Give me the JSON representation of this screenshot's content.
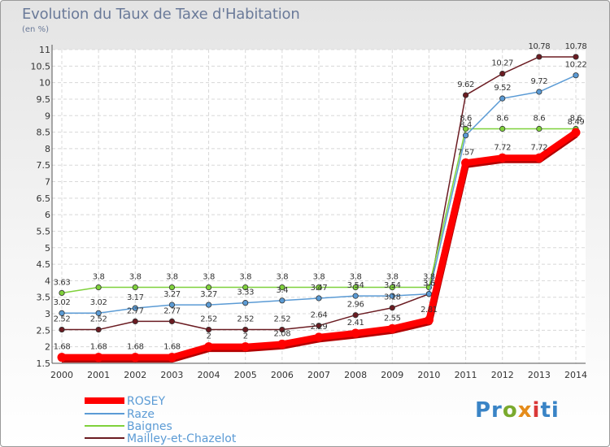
{
  "chart_data": {
    "type": "line",
    "title": "Evolution du Taux de Taxe d'Habitation",
    "subtitle": "(en %)",
    "x": [
      "2000",
      "2001",
      "2002",
      "2003",
      "2004",
      "2005",
      "2006",
      "2007",
      "2008",
      "2009",
      "2010",
      "2011",
      "2012",
      "2013",
      "2014"
    ],
    "ylim": [
      1.5,
      11
    ],
    "yticks": [
      "1.5",
      "2",
      "2.5",
      "3",
      "3.5",
      "4",
      "4.5",
      "5",
      "5.5",
      "6",
      "6.5",
      "7",
      "7.5",
      "8",
      "8.5",
      "9",
      "9.5",
      "10",
      "10.5",
      "11"
    ],
    "grid": true,
    "legend_position": "bottom-left",
    "series": [
      {
        "name": "ROSEY",
        "color": "#ff0000",
        "values": [
          1.68,
          1.68,
          1.68,
          1.68,
          2,
          2,
          2.08,
          2.29,
          2.41,
          2.55,
          2.81,
          7.57,
          7.72,
          7.72,
          8.49
        ],
        "labels": [
          "1.68",
          "1.68",
          "1.68",
          "1.68",
          "2",
          "2",
          "2.08",
          "2.29",
          "2.41",
          "2.55",
          "2.81",
          "7.57",
          "7.72",
          "7.72",
          "8.49"
        ]
      },
      {
        "name": "Raze",
        "color": "#5b9bd5",
        "values": [
          3.02,
          3.02,
          3.17,
          3.27,
          3.27,
          3.33,
          3.4,
          3.47,
          3.54,
          3.54,
          3.6,
          8.4,
          9.52,
          9.72,
          10.22
        ],
        "labels": [
          "3.02",
          "3.02",
          "3.17",
          "3.27",
          "3.27",
          "3.33",
          "3.4",
          "3.47",
          "3.54",
          "3.54",
          "3.6",
          "8.4",
          "9.52",
          "9.72",
          "10.22"
        ]
      },
      {
        "name": "Baignes",
        "color": "#7fd13b",
        "values": [
          3.63,
          3.8,
          3.8,
          3.8,
          3.8,
          3.8,
          3.8,
          3.8,
          3.8,
          3.8,
          3.8,
          8.6,
          8.6,
          8.6,
          8.6
        ],
        "labels": [
          "3.63",
          "3.8",
          "3.8",
          "3.8",
          "3.8",
          "3.8",
          "3.8",
          "3.8",
          "3.8",
          "3.8",
          "3.8",
          "8.6",
          "8.6",
          "8.6",
          "8.6"
        ]
      },
      {
        "name": "Mailley-et-Chazelot",
        "color": "#6b1c22",
        "values": [
          2.52,
          2.52,
          2.77,
          2.77,
          2.52,
          2.52,
          2.52,
          2.64,
          2.96,
          3.18,
          3.6,
          9.62,
          10.27,
          10.78,
          10.78
        ],
        "labels": [
          "2.52",
          "2.52",
          "2.77",
          "2.77",
          "2.52",
          "2.52",
          "2.52",
          "2.64",
          "2.96",
          "3.18",
          "3.6",
          "9.62",
          "10.27",
          "10.78",
          "10.78"
        ]
      }
    ]
  },
  "logo": {
    "p1": "Pr",
    "p2": "o",
    "p3": "x",
    "p4": "i",
    "p5": "ti"
  }
}
